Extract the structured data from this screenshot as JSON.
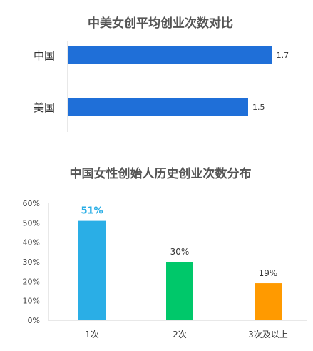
{
  "chart_data": [
    {
      "type": "bar",
      "orientation": "horizontal",
      "title": "中美女创平均创业次数对比",
      "categories": [
        "中国",
        "美国"
      ],
      "values": [
        1.7,
        1.5
      ],
      "value_labels": [
        "1.7",
        "1.5"
      ],
      "bar_color": "#1f6fd8",
      "xlim": [
        0,
        1.75
      ],
      "grid": false,
      "legend": "none"
    },
    {
      "type": "bar",
      "orientation": "vertical",
      "title": "中国女性创始人历史创业次数分布",
      "categories": [
        "1次",
        "2次",
        "3次及以上"
      ],
      "values": [
        51,
        30,
        19
      ],
      "value_labels": [
        "51%",
        "30%",
        "19%"
      ],
      "colors": [
        "#2aaee6",
        "#00c86a",
        "#ff9a00"
      ],
      "highlight_label_color": "#2aaee6",
      "ylim": [
        0,
        60
      ],
      "yticks": [
        "0%",
        "10%",
        "20%",
        "30%",
        "40%",
        "50%",
        "60%"
      ],
      "grid": false,
      "legend": "none"
    }
  ]
}
